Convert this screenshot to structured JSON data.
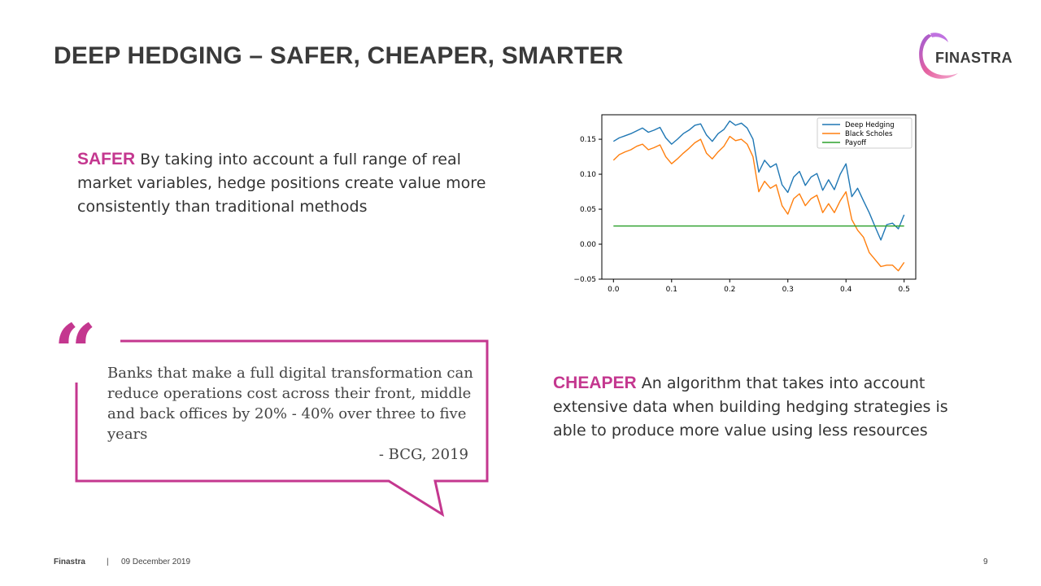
{
  "title": "DEEP HEDGING – SAFER, CHEAPER,  SMARTER",
  "logo": {
    "text": "FINASTRA"
  },
  "safer": {
    "keyword": "SAFER",
    "text": "By taking into account a full range of real market variables, hedge positions create value more consistently than traditional methods"
  },
  "cheaper": {
    "keyword": "CHEAPER",
    "text": "An algorithm that takes into account extensive data when building hedging strategies is able to produce more value using less resources"
  },
  "quote": {
    "mark": "“",
    "text": "Banks that make a full digital transformation can reduce operations cost across their front, middle and back offices by 20% - 40% over three to five years",
    "source": "- BCG, 2019"
  },
  "footer": {
    "brand": "Finastra",
    "separator": "|",
    "date": "09 December 2019",
    "page": "9"
  },
  "colors": {
    "accent": "#c4378f",
    "deep_hedging": "#1f77b4",
    "black_scholes": "#ff7f0e",
    "payoff": "#2ca02c"
  },
  "chart_data": {
    "type": "line",
    "title": "",
    "xlabel": "",
    "ylabel": "",
    "xlim": [
      -0.02,
      0.52
    ],
    "ylim": [
      -0.05,
      0.185
    ],
    "xticks": [
      0.0,
      0.1,
      0.2,
      0.3,
      0.4,
      0.5
    ],
    "xtick_labels": [
      "0.0",
      "0.1",
      "0.2",
      "0.3",
      "0.4",
      "0.5"
    ],
    "yticks": [
      -0.05,
      0.0,
      0.05,
      0.1,
      0.15
    ],
    "ytick_labels": [
      "−0.05",
      "0.00",
      "0.05",
      "0.10",
      "0.15"
    ],
    "legend_position": "top-right",
    "series": [
      {
        "name": "Deep Hedging",
        "color": "#1f77b4",
        "x": [
          0.0,
          0.01,
          0.02,
          0.03,
          0.04,
          0.05,
          0.06,
          0.07,
          0.08,
          0.09,
          0.1,
          0.11,
          0.12,
          0.13,
          0.14,
          0.15,
          0.16,
          0.17,
          0.18,
          0.19,
          0.2,
          0.21,
          0.22,
          0.23,
          0.24,
          0.25,
          0.26,
          0.27,
          0.28,
          0.29,
          0.3,
          0.31,
          0.32,
          0.33,
          0.34,
          0.35,
          0.36,
          0.37,
          0.38,
          0.39,
          0.4,
          0.41,
          0.42,
          0.43,
          0.44,
          0.45,
          0.46,
          0.47,
          0.48,
          0.49,
          0.5
        ],
        "y": [
          0.147,
          0.152,
          0.155,
          0.158,
          0.162,
          0.166,
          0.16,
          0.163,
          0.167,
          0.152,
          0.143,
          0.15,
          0.158,
          0.163,
          0.17,
          0.172,
          0.156,
          0.147,
          0.158,
          0.164,
          0.176,
          0.17,
          0.173,
          0.166,
          0.15,
          0.103,
          0.12,
          0.11,
          0.115,
          0.085,
          0.074,
          0.096,
          0.104,
          0.084,
          0.096,
          0.101,
          0.077,
          0.092,
          0.078,
          0.1,
          0.115,
          0.068,
          0.08,
          0.062,
          0.045,
          0.025,
          0.006,
          0.028,
          0.03,
          0.022,
          0.042
        ]
      },
      {
        "name": "Black Scholes",
        "color": "#ff7f0e",
        "x": [
          0.0,
          0.01,
          0.02,
          0.03,
          0.04,
          0.05,
          0.06,
          0.07,
          0.08,
          0.09,
          0.1,
          0.11,
          0.12,
          0.13,
          0.14,
          0.15,
          0.16,
          0.17,
          0.18,
          0.19,
          0.2,
          0.21,
          0.22,
          0.23,
          0.24,
          0.25,
          0.26,
          0.27,
          0.28,
          0.29,
          0.3,
          0.31,
          0.32,
          0.33,
          0.34,
          0.35,
          0.36,
          0.37,
          0.38,
          0.39,
          0.4,
          0.41,
          0.42,
          0.43,
          0.44,
          0.45,
          0.46,
          0.47,
          0.48,
          0.49,
          0.5
        ],
        "y": [
          0.12,
          0.128,
          0.132,
          0.135,
          0.14,
          0.143,
          0.135,
          0.138,
          0.142,
          0.125,
          0.115,
          0.122,
          0.13,
          0.137,
          0.145,
          0.15,
          0.13,
          0.122,
          0.132,
          0.14,
          0.154,
          0.148,
          0.15,
          0.143,
          0.125,
          0.075,
          0.09,
          0.08,
          0.085,
          0.055,
          0.043,
          0.065,
          0.072,
          0.055,
          0.065,
          0.07,
          0.045,
          0.058,
          0.045,
          0.062,
          0.075,
          0.035,
          0.02,
          0.01,
          -0.012,
          -0.022,
          -0.032,
          -0.03,
          -0.03,
          -0.038,
          -0.026
        ]
      },
      {
        "name": "Payoff",
        "color": "#2ca02c",
        "x": [
          0.0,
          0.5
        ],
        "y": [
          0.026,
          0.026
        ]
      }
    ]
  }
}
